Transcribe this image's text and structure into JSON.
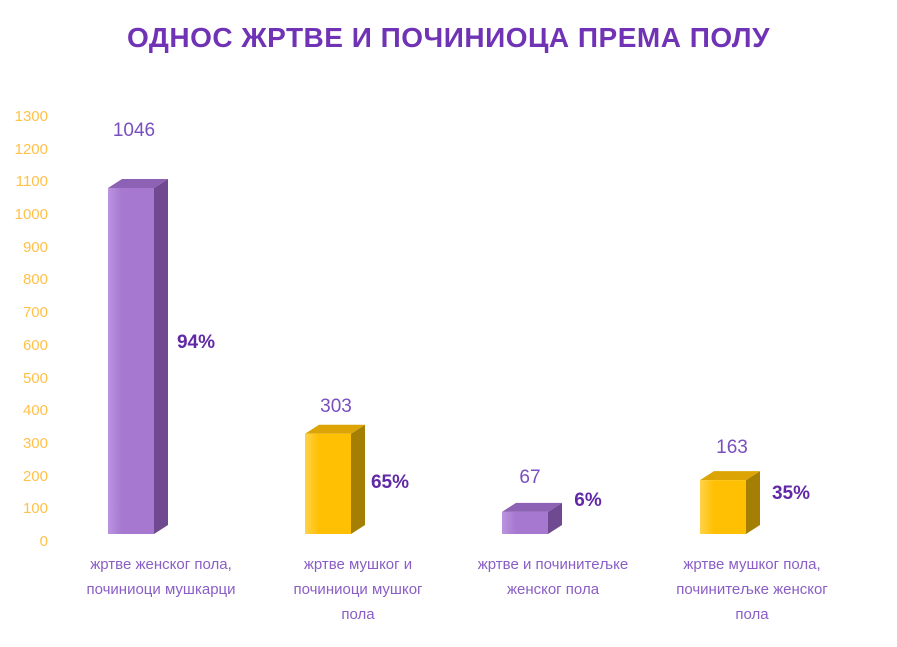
{
  "title": "ОДНОС ЖРТВЕ И ПОЧИНИОЦА ПРЕМА ПОЛУ",
  "colors": {
    "title": "#7133b5",
    "value_label": "#7a4fc0",
    "percent_label": "#6229a6",
    "category_label": "#8a5ec6",
    "axis_label": "#ffc14a",
    "purple_front": "#a678d0",
    "purple_front_light": "#bb94e0",
    "purple_top": "#8d62b4",
    "purple_side": "#6f4a90",
    "gold_front": "#ffc003",
    "gold_front_light": "#ffd24a",
    "gold_top": "#dda406",
    "gold_side": "#a57e04",
    "background": "#ffffff"
  },
  "chart_data": {
    "type": "bar",
    "style": "3d-box",
    "title": "ОДНОС ЖРТВЕ И ПОЧИНИОЦА ПРЕМА ПОЛУ",
    "categories": [
      "жртве женског пола, починиоци мушкарци",
      "жртве мушког и починиоци мушког пола",
      "жртве и починитељке женског пола",
      "жртве мушког пола, починитељке женског пола"
    ],
    "category_lines": [
      [
        "жртве женског пола,",
        "починиоци мушкарци"
      ],
      [
        "жртве мушког и",
        "починиоци мушког",
        "пола"
      ],
      [
        "жртве и починитељке",
        "женског пола"
      ],
      [
        "жртве мушког пола,",
        "починитељке женског",
        "пола"
      ]
    ],
    "values": [
      1046,
      303,
      67,
      163
    ],
    "data_labels": [
      "1046",
      "303",
      "67",
      "163"
    ],
    "percent_labels": [
      "94%",
      "65%",
      "6%",
      "35%"
    ],
    "bar_color_names": [
      "purple",
      "gold",
      "purple",
      "gold"
    ],
    "xlabel": "",
    "ylabel": "",
    "ylim": [
      0,
      1300
    ],
    "ytick_step": 100,
    "yticks": [
      1300,
      1200,
      1100,
      1000,
      900,
      800,
      700,
      600,
      500,
      400,
      300,
      200,
      100,
      0
    ],
    "grid": false,
    "legend": false
  }
}
